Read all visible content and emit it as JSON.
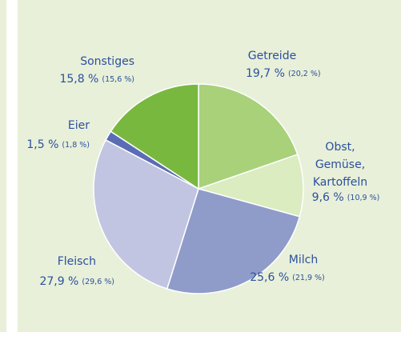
{
  "chart_data": {
    "type": "pie",
    "categories": [
      "Getreide",
      "Obst,\nGemüse,\nKartoffeln",
      "Milch",
      "Fleisch",
      "Eier",
      "Sonstiges"
    ],
    "series": [
      {
        "values": [
          19.7,
          9.6,
          25.6,
          27.9,
          1.5,
          15.8
        ],
        "value_labels": [
          "19,7 %",
          "9,6 %",
          "25,6 %",
          "27,9 %",
          "1,5 %",
          "15,8 %"
        ],
        "colors": [
          "#a8d17a",
          "#daecc0",
          "#8f9cc9",
          "#c1c5e1",
          "#5a6cb4",
          "#78b83f"
        ]
      },
      {
        "values": [
          20.2,
          10.9,
          21.9,
          29.6,
          1.8,
          15.6
        ],
        "value_labels": [
          "(20,2 %)",
          "(10,9 %)",
          "(21,9 %)",
          "(29,6 %)",
          "(1,8 %)",
          "(15,6 %)"
        ]
      }
    ]
  }
}
